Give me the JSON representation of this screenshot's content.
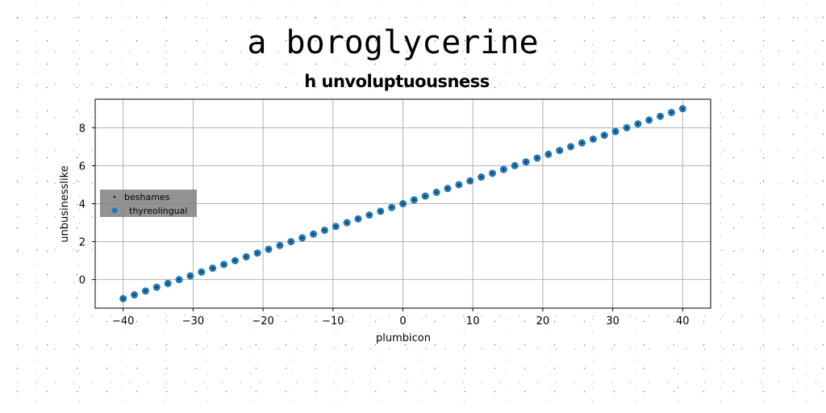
{
  "chart_data": {
    "type": "scatter",
    "title": "a boroglycerine",
    "subtitle": "h unvoluptuousness",
    "xlabel": "plumbicon",
    "ylabel": "unbusinesslike",
    "xlim": [
      -44,
      44
    ],
    "ylim": [
      -1.5,
      9.5
    ],
    "xticks": [
      -40,
      -30,
      -20,
      -10,
      0,
      10,
      20,
      30,
      40
    ],
    "yticks": [
      0,
      2,
      4,
      6,
      8
    ],
    "xtick_labels": [
      "−40",
      "−30",
      "−20",
      "−10",
      "0",
      "10",
      "20",
      "30",
      "40"
    ],
    "ytick_labels": [
      "0",
      "2",
      "4",
      "6",
      "8"
    ],
    "grid": true,
    "legend_position": "center-left",
    "series": [
      {
        "name": "beshames",
        "color": "#000000",
        "marker": "point",
        "x": [
          -40,
          -38.4,
          -36.8,
          -35.2,
          -33.6,
          -32,
          -30.4,
          -28.8,
          -27.2,
          -25.6,
          -24,
          -22.4,
          -20.8,
          -19.2,
          -17.6,
          -16,
          -14.4,
          -12.8,
          -11.2,
          -9.6,
          -8,
          -6.4,
          -4.8,
          -3.2,
          -1.6,
          0,
          1.6,
          3.2,
          4.8,
          6.4,
          8,
          9.6,
          11.2,
          12.8,
          14.4,
          16,
          17.6,
          19.2,
          20.8,
          22.4,
          24,
          25.6,
          27.2,
          28.8,
          30.4,
          32,
          33.6,
          35.2,
          36.8,
          38.4,
          40
        ],
        "y": [
          -1,
          -0.8,
          -0.6,
          -0.4,
          -0.2,
          0,
          0.2,
          0.4,
          0.6,
          0.8,
          1,
          1.2,
          1.4,
          1.6,
          1.8,
          2,
          2.2,
          2.4,
          2.6,
          2.8,
          3,
          3.2,
          3.4,
          3.6,
          3.8,
          4,
          4.2,
          4.4,
          4.6,
          4.8,
          5,
          5.2,
          5.4,
          5.6,
          5.8,
          6,
          6.2,
          6.4,
          6.6,
          6.8,
          7,
          7.2,
          7.4,
          7.6,
          7.8,
          8,
          8.2,
          8.4,
          8.6,
          8.8,
          9
        ]
      },
      {
        "name": "thyreolingual",
        "color": "#1f77b4",
        "marker": "circle",
        "x": [
          -40,
          -38.4,
          -36.8,
          -35.2,
          -33.6,
          -32,
          -30.4,
          -28.8,
          -27.2,
          -25.6,
          -24,
          -22.4,
          -20.8,
          -19.2,
          -17.6,
          -16,
          -14.4,
          -12.8,
          -11.2,
          -9.6,
          -8,
          -6.4,
          -4.8,
          -3.2,
          -1.6,
          0,
          1.6,
          3.2,
          4.8,
          6.4,
          8,
          9.6,
          11.2,
          12.8,
          14.4,
          16,
          17.6,
          19.2,
          20.8,
          22.4,
          24,
          25.6,
          27.2,
          28.8,
          30.4,
          32,
          33.6,
          35.2,
          36.8,
          38.4,
          40
        ],
        "y": [
          -1,
          -0.8,
          -0.6,
          -0.4,
          -0.2,
          0,
          0.2,
          0.4,
          0.6,
          0.8,
          1,
          1.2,
          1.4,
          1.6,
          1.8,
          2,
          2.2,
          2.4,
          2.6,
          2.8,
          3,
          3.2,
          3.4,
          3.6,
          3.8,
          4,
          4.2,
          4.4,
          4.6,
          4.8,
          5,
          5.2,
          5.4,
          5.6,
          5.8,
          6,
          6.2,
          6.4,
          6.6,
          6.8,
          7,
          7.2,
          7.4,
          7.6,
          7.8,
          8,
          8.2,
          8.4,
          8.6,
          8.8,
          9
        ]
      }
    ]
  }
}
